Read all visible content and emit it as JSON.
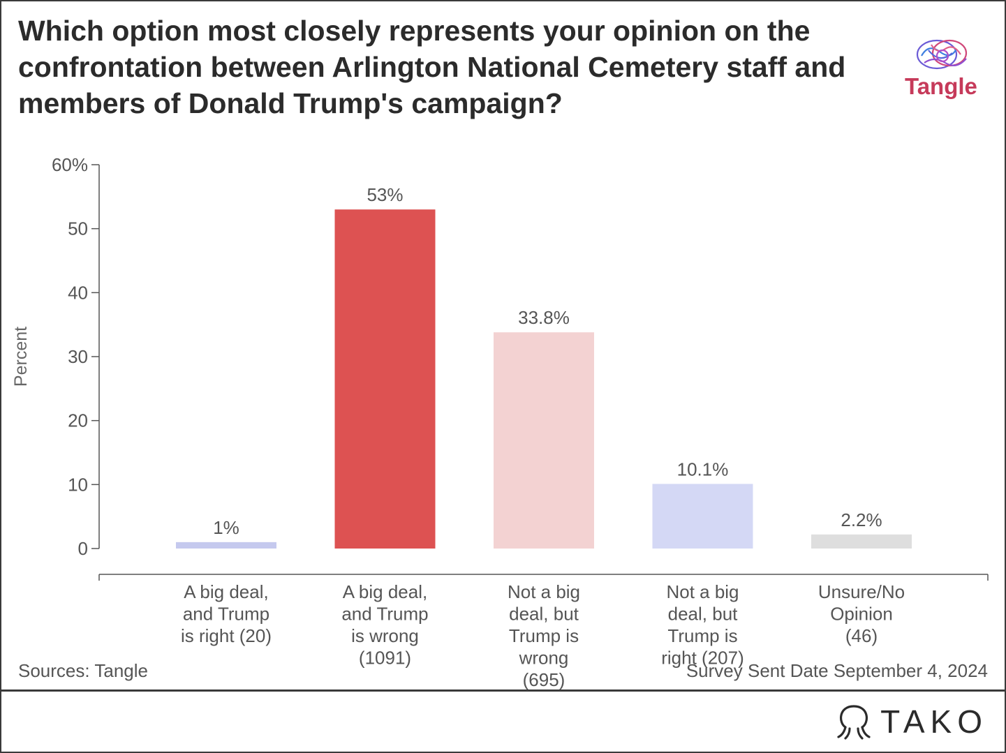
{
  "title": "Which option most closely represents your opinion on the confrontation between Arlington National Cemetery staff and members of Donald Trump's campaign?",
  "brand": {
    "name": "Tangle",
    "icon": "brain-icon"
  },
  "footer": {
    "sources": "Sources: Tangle",
    "survey_date": "Survey Sent Date September 4, 2024",
    "logo_text": "TAKO",
    "logo_icon": "tako-octopus-icon"
  },
  "chart_data": {
    "type": "bar",
    "title": "Which option most closely represents your opinion on the confrontation between Arlington National Cemetery staff and members of Donald Trump's campaign?",
    "xlabel": "",
    "ylabel": "Percent",
    "ylim": [
      0,
      60
    ],
    "yticks": [
      0,
      10,
      20,
      30,
      40,
      50,
      60
    ],
    "ytick_labels": [
      "0",
      "10",
      "20",
      "30",
      "40",
      "50",
      "60%"
    ],
    "grid": false,
    "legend": "none",
    "categories": [
      [
        "A big deal,",
        "and Trump",
        "is right (20)"
      ],
      [
        "A big deal,",
        "and Trump",
        "is wrong",
        "(1091)"
      ],
      [
        "Not a big",
        "deal, but",
        "Trump is",
        "wrong",
        "(695)"
      ],
      [
        "Not a big",
        "deal, but",
        "Trump is",
        "right (207)"
      ],
      [
        "Unsure/No",
        "Opinion",
        "(46)"
      ]
    ],
    "values": [
      1,
      53,
      33.8,
      10.1,
      2.2
    ],
    "data_labels": [
      "1%",
      "53%",
      "33.8%",
      "10.1%",
      "2.2%"
    ],
    "colors": [
      "#c5c9ee",
      "#dd5252",
      "#f3d2d2",
      "#d4d8f5",
      "#dedede"
    ]
  }
}
